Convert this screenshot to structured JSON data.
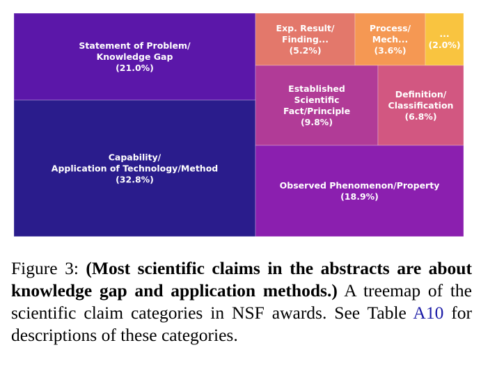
{
  "chart_data": {
    "type": "treemap",
    "categories": [
      {
        "label_lines": [
          "Statement of Problem/",
          "Knowledge Gap"
        ],
        "pct_label": "(21.0%)",
        "value": 21.0,
        "color": "#5b17a9"
      },
      {
        "label_lines": [
          "Capability/",
          "Application of Technology/Method"
        ],
        "pct_label": "(32.8%)",
        "value": 32.8,
        "color": "#2a1c8c"
      },
      {
        "label_lines": [
          "Exp. Result/",
          "Finding..."
        ],
        "pct_label": "(5.2%)",
        "value": 5.2,
        "color": "#e3786b"
      },
      {
        "label_lines": [
          "Process/",
          "Mech..."
        ],
        "pct_label": "(3.6%)",
        "value": 3.6,
        "color": "#f59853"
      },
      {
        "label_lines": [
          "..."
        ],
        "pct_label": "(2.0%)",
        "value": 2.0,
        "color": "#f9c440"
      },
      {
        "label_lines": [
          "Established",
          "Scientific",
          "Fact/Principle"
        ],
        "pct_label": "(9.8%)",
        "value": 9.8,
        "color": "#b13b97"
      },
      {
        "label_lines": [
          "Definition/",
          "Classification"
        ],
        "pct_label": "(6.8%)",
        "value": 6.8,
        "color": "#d25781"
      },
      {
        "label_lines": [
          "Observed Phenomenon/Property"
        ],
        "pct_label": "(18.9%)",
        "value": 18.9,
        "color": "#8b1faf"
      }
    ]
  },
  "caption": {
    "prefix": "Figure 3: ",
    "bold": "(Most scientific claims in the abstracts are about knowledge gap and application methods.)",
    "text1": " A treemap of the scientific claim categories in NSF awards. See Table ",
    "ref": "A10",
    "text2": " for descriptions of these categories."
  }
}
